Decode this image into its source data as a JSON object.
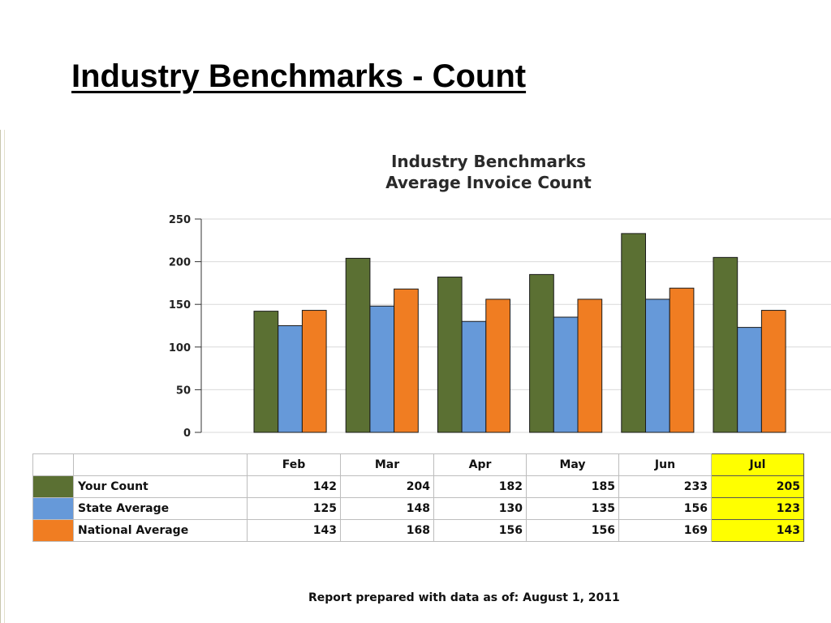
{
  "page": {
    "title": "Industry Benchmarks - Count",
    "footer": "Report prepared with data as of: August 1, 2011"
  },
  "chart_data": {
    "type": "bar",
    "title": "Industry Benchmarks",
    "subtitle": "Average Invoice Count",
    "categories": [
      "Feb",
      "Mar",
      "Apr",
      "May",
      "Jun",
      "Jul"
    ],
    "highlighted_category": "Jul",
    "ylim": [
      0,
      250
    ],
    "yticks": [
      0,
      50,
      100,
      150,
      200,
      250
    ],
    "grid": true,
    "legend": "table-below",
    "series": [
      {
        "name": "Your Count",
        "color": "#5b7033",
        "values": [
          142,
          204,
          182,
          185,
          233,
          205
        ]
      },
      {
        "name": "State Average",
        "color": "#6699d9",
        "values": [
          125,
          148,
          130,
          135,
          156,
          123
        ]
      },
      {
        "name": "National Average",
        "color": "#f07d22",
        "values": [
          143,
          168,
          156,
          156,
          169,
          143
        ]
      }
    ]
  }
}
